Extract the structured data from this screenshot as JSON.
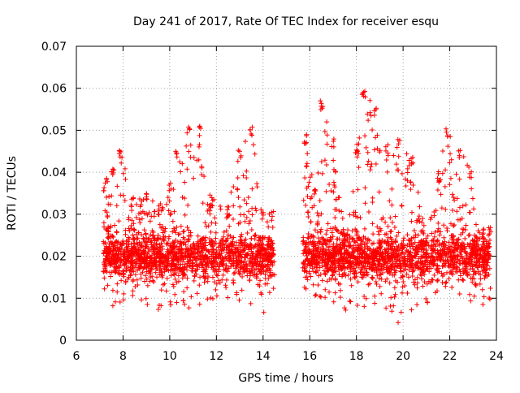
{
  "chart_data": {
    "type": "scatter",
    "title": "Day 241 of 2017, Rate Of TEC Index for receiver esqu",
    "xlabel": "GPS time / hours",
    "ylabel": "ROTI / TECUs",
    "xlim": [
      6,
      24
    ],
    "ylim": [
      0,
      0.07
    ],
    "x_ticks": [
      6,
      8,
      10,
      12,
      14,
      16,
      18,
      20,
      22,
      24
    ],
    "x_tick_labels": [
      "6",
      "8",
      "10",
      "12",
      "14",
      "16",
      "18",
      "20",
      "22",
      "24"
    ],
    "y_ticks": [
      0,
      0.01,
      0.02,
      0.03,
      0.04,
      0.05,
      0.06,
      0.07
    ],
    "y_tick_labels": [
      "0",
      "0.01",
      "0.02",
      "0.03",
      "0.04",
      "0.05",
      "0.06",
      "0.07"
    ],
    "grid": true,
    "marker": "+",
    "color": "#ff0000",
    "series": [
      {
        "name": "ROTI",
        "segments": [
          {
            "x_start": 7.15,
            "x_end": 14.5
          },
          {
            "x_start": 15.7,
            "x_end": 23.75
          }
        ],
        "envelope": [
          {
            "x": 7.2,
            "low": 0.012,
            "high": 0.038
          },
          {
            "x": 7.6,
            "low": 0.008,
            "high": 0.041
          },
          {
            "x": 7.9,
            "low": 0.009,
            "high": 0.046
          },
          {
            "x": 8.4,
            "low": 0.01,
            "high": 0.034
          },
          {
            "x": 9.0,
            "low": 0.008,
            "high": 0.035
          },
          {
            "x": 9.5,
            "low": 0.007,
            "high": 0.032
          },
          {
            "x": 10.0,
            "low": 0.008,
            "high": 0.038
          },
          {
            "x": 10.3,
            "low": 0.008,
            "high": 0.045
          },
          {
            "x": 10.8,
            "low": 0.007,
            "high": 0.051
          },
          {
            "x": 11.3,
            "low": 0.008,
            "high": 0.051
          },
          {
            "x": 11.8,
            "low": 0.009,
            "high": 0.034
          },
          {
            "x": 12.5,
            "low": 0.01,
            "high": 0.032
          },
          {
            "x": 13.0,
            "low": 0.009,
            "high": 0.046
          },
          {
            "x": 13.5,
            "low": 0.008,
            "high": 0.051
          },
          {
            "x": 14.0,
            "low": 0.006,
            "high": 0.031
          },
          {
            "x": 14.4,
            "low": 0.012,
            "high": 0.031
          },
          {
            "x": 15.8,
            "low": 0.012,
            "high": 0.049
          },
          {
            "x": 16.2,
            "low": 0.01,
            "high": 0.036
          },
          {
            "x": 16.5,
            "low": 0.01,
            "high": 0.057
          },
          {
            "x": 17.0,
            "low": 0.009,
            "high": 0.048
          },
          {
            "x": 17.5,
            "low": 0.007,
            "high": 0.026
          },
          {
            "x": 18.0,
            "low": 0.008,
            "high": 0.046
          },
          {
            "x": 18.3,
            "low": 0.008,
            "high": 0.06
          },
          {
            "x": 18.8,
            "low": 0.008,
            "high": 0.056
          },
          {
            "x": 19.3,
            "low": 0.007,
            "high": 0.047
          },
          {
            "x": 19.8,
            "low": 0.004,
            "high": 0.048
          },
          {
            "x": 20.4,
            "low": 0.007,
            "high": 0.044
          },
          {
            "x": 21.0,
            "low": 0.008,
            "high": 0.024
          },
          {
            "x": 21.5,
            "low": 0.011,
            "high": 0.04
          },
          {
            "x": 21.9,
            "low": 0.013,
            "high": 0.051
          },
          {
            "x": 22.4,
            "low": 0.011,
            "high": 0.046
          },
          {
            "x": 22.9,
            "low": 0.009,
            "high": 0.041
          },
          {
            "x": 23.4,
            "low": 0.008,
            "high": 0.027
          },
          {
            "x": 23.7,
            "low": 0.009,
            "high": 0.027
          }
        ]
      }
    ]
  }
}
